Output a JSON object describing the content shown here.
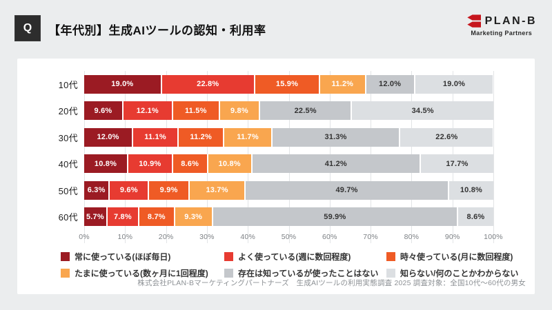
{
  "header": {
    "q_label": "Q",
    "title": "【年代別】生成AIツールの認知・利用率",
    "logo": {
      "name": "PLAN-B",
      "subtitle": "Marketing Partners",
      "accent_color": "#c6161d"
    }
  },
  "chart_data": {
    "type": "bar",
    "stacked": true,
    "orientation": "horizontal",
    "title": "【年代別】生成AIツールの認知・利用率",
    "categories": [
      "10代",
      "20代",
      "30代",
      "40代",
      "50代",
      "60代"
    ],
    "series": [
      {
        "name": "常に使っている(ほぼ毎日)",
        "color": "#9b1b23",
        "text_color": "#ffffff",
        "values": [
          19.0,
          9.6,
          12.0,
          10.8,
          6.3,
          5.7
        ]
      },
      {
        "name": "よく使っている(週に数回程度)",
        "color": "#e73b31",
        "text_color": "#ffffff",
        "values": [
          22.8,
          12.1,
          11.1,
          10.9,
          9.6,
          7.8
        ]
      },
      {
        "name": "時々使っている(月に数回程度)",
        "color": "#ef5b25",
        "text_color": "#ffffff",
        "values": [
          15.9,
          11.5,
          11.2,
          8.6,
          9.9,
          8.7
        ]
      },
      {
        "name": "たまに使っている(数ヶ月に1回程度)",
        "color": "#f9a64f",
        "text_color": "#ffffff",
        "values": [
          11.2,
          9.8,
          11.7,
          10.8,
          13.7,
          9.3
        ]
      },
      {
        "name": "存在は知っているが使ったことはない",
        "color": "#c4c7cb",
        "text_color": "#333333",
        "values": [
          12.0,
          22.5,
          31.3,
          41.2,
          49.7,
          59.9
        ]
      },
      {
        "name": "知らない/何のことかわからない",
        "color": "#dcdfe2",
        "text_color": "#333333",
        "values": [
          19.0,
          34.5,
          22.6,
          17.7,
          10.8,
          8.6
        ]
      }
    ],
    "x_ticks": [
      "0%",
      "10%",
      "20%",
      "30%",
      "40%",
      "50%",
      "60%",
      "70%",
      "80%",
      "90%",
      "100%"
    ],
    "xlim": [
      0,
      100
    ],
    "value_suffix": "%",
    "grid": true,
    "legend_position": "bottom"
  },
  "footer": {
    "source": "株式会社PLAN-Bマーケティングパートナーズ　生成AIツールの利用実態調査 2025 調査対象：全国10代～60代の男女"
  }
}
